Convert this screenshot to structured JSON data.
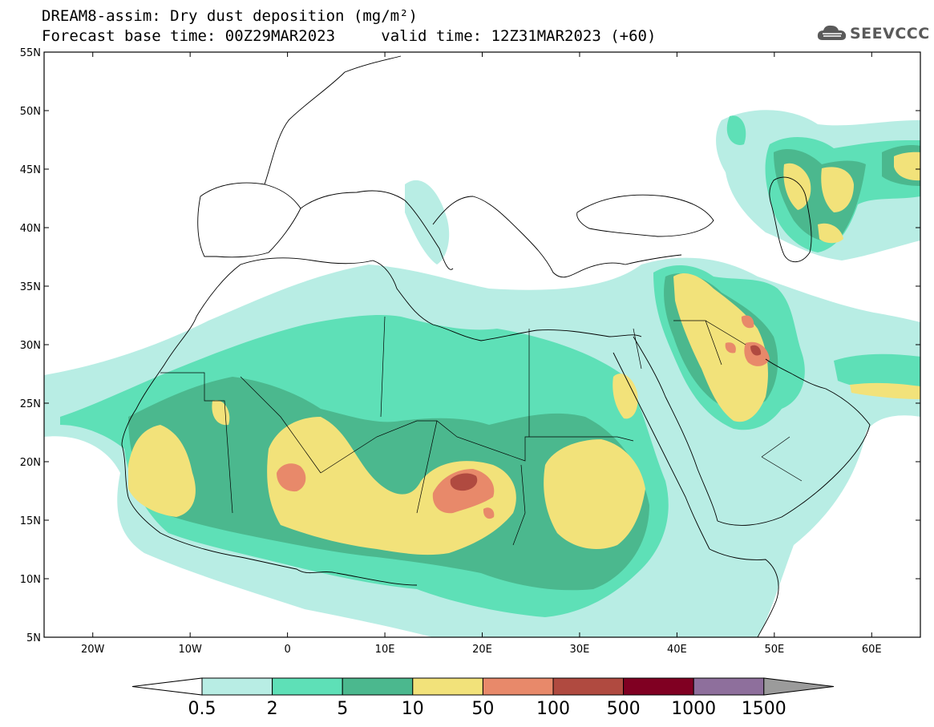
{
  "title": {
    "line1": "DREAM8-assim: Dry dust deposition (mg/m²)",
    "line2_base": "Forecast base time: 00Z29MAR2023",
    "line2_valid": "valid time: 12Z31MAR2023 (+60)"
  },
  "logo": {
    "text": "SEEVCCC",
    "icon": "cloud-icon"
  },
  "map": {
    "lat_range": [
      5,
      55
    ],
    "lon_range": [
      -25,
      65
    ],
    "lat_labels": [
      "55N",
      "50N",
      "45N",
      "40N",
      "35N",
      "30N",
      "25N",
      "20N",
      "15N",
      "10N",
      "5N"
    ],
    "lon_labels": [
      "20W",
      "10W",
      "0",
      "10E",
      "20E",
      "30E",
      "40E",
      "50E",
      "60E"
    ]
  },
  "legend": {
    "levels": [
      "0.5",
      "2",
      "5",
      "10",
      "50",
      "100",
      "500",
      "1000",
      "1500"
    ],
    "colors": [
      "#b8ede4",
      "#5ee0b7",
      "#4bb88e",
      "#f2e27a",
      "#e8896a",
      "#b04a40",
      "#800022",
      "#8e6f9c",
      "#9b9b9b"
    ],
    "low_end_color": "#ffffff"
  }
}
